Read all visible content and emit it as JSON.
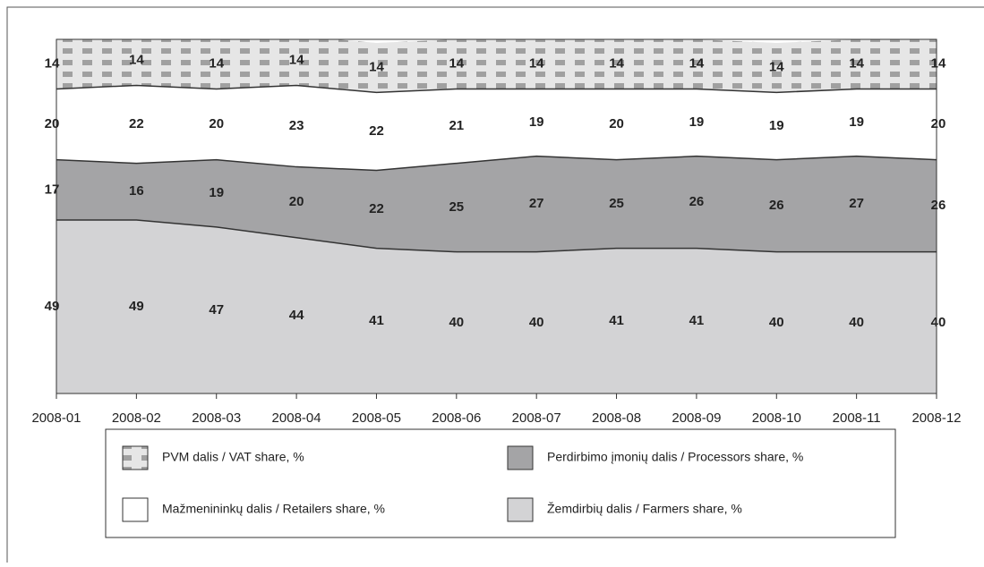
{
  "chart_data": {
    "type": "stacked_area",
    "categories": [
      "2008-01",
      "2008-02",
      "2008-03",
      "2008-04",
      "2008-05",
      "2008-06",
      "2008-07",
      "2008-08",
      "2008-09",
      "2008-10",
      "2008-11",
      "2008-12"
    ],
    "series": [
      {
        "name": "Žemdirbių dalis / Farmers share, %",
        "color": "#d3d3d5",
        "values": [
          49,
          49,
          47,
          44,
          41,
          40,
          40,
          41,
          41,
          40,
          40,
          40
        ]
      },
      {
        "name": "Perdirbimo įmonių dalis / Processors share, %",
        "color": "#a4a4a6",
        "values": [
          17,
          16,
          19,
          20,
          22,
          25,
          27,
          25,
          26,
          26,
          27,
          26
        ]
      },
      {
        "name": "Mažmenininkų dalis / Retailers share, %",
        "color": "#ffffff",
        "values": [
          20,
          22,
          20,
          23,
          22,
          21,
          19,
          20,
          19,
          19,
          19,
          20
        ]
      },
      {
        "name": "PVM dalis / VAT share, %",
        "color": "#a0a0a0",
        "values": [
          14,
          14,
          14,
          14,
          14,
          14,
          14,
          14,
          14,
          14,
          14,
          14
        ]
      }
    ],
    "ylim": [
      0,
      100
    ]
  }
}
